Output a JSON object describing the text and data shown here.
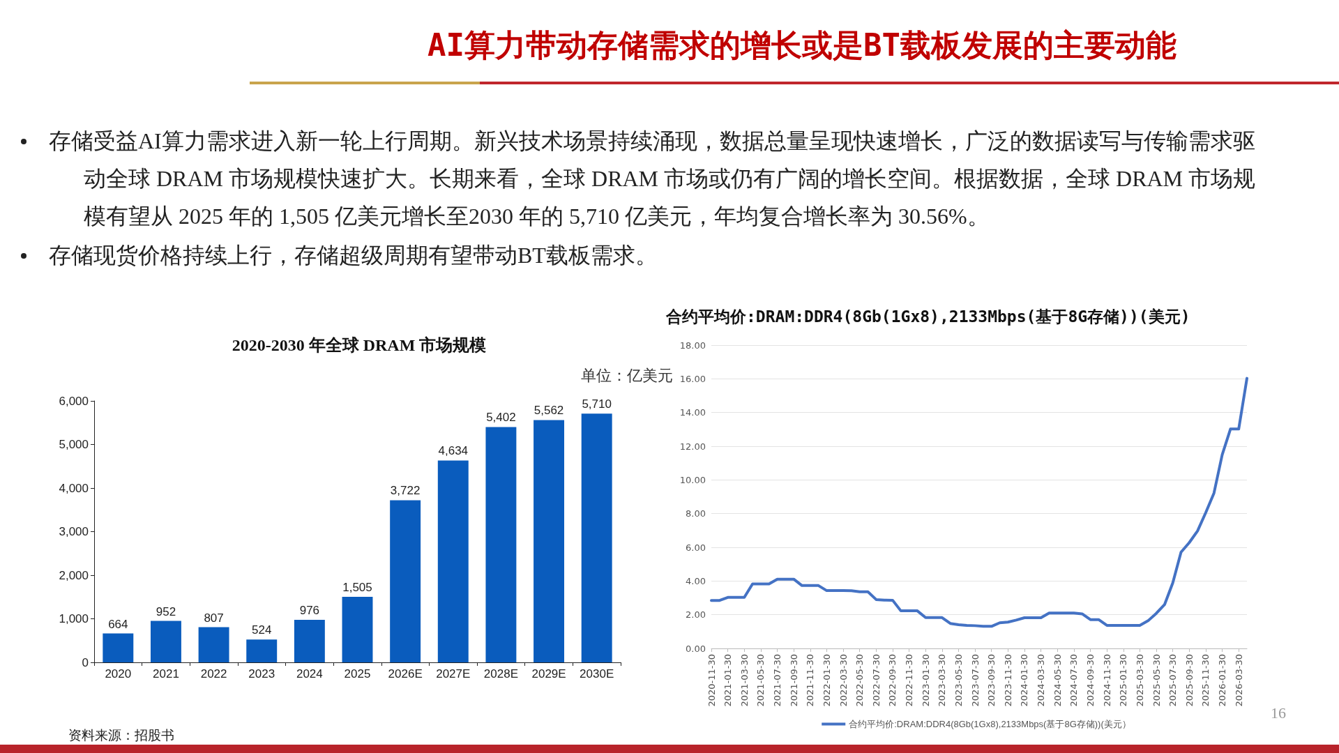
{
  "chart_data": [
    {
      "type": "other",
      "title": "AI算力带动存储需求的增长或是BT载板发展的主要动能",
      "annotations": [
        "存储受益AI算力需求进入新一轮上行周期。新兴技术场景持续涌现，数据总量呈现快速增长，广泛的数据读写与传输需求驱动全球 DRAM 市场规模快速扩大。长期来看，全球 DRAM 市场或仍有广阔的增长空间。根据数据，全球 DRAM 市场规模有望从 2025 年的 1,505 亿美元增长至2030 年的 5,710 亿美元，年均复合增长率为 30.56%。",
        "存储现货价格持续上行，存储超级周期有望带动BT载板需求。",
        "资料来源：招股书",
        "16"
      ]
    },
    {
      "type": "bar",
      "title": "2020-2030 年全球 DRAM 市场规模",
      "subtitle": "单位：亿美元",
      "categories": [
        "2020",
        "2021",
        "2022",
        "2023",
        "2024",
        "2025",
        "2026E",
        "2027E",
        "2028E",
        "2029E",
        "2030E"
      ],
      "values": [
        664,
        952,
        807,
        524,
        976,
        1505,
        3722,
        4634,
        5402,
        5562,
        5710
      ],
      "value_labels": [
        "664",
        "952",
        "807",
        "524",
        "976",
        "1,505",
        "3,722",
        "4,634",
        "5,402",
        "5,562",
        "5,710"
      ],
      "color": "#0a5cbd",
      "ylim": [
        0,
        6000
      ],
      "yticks": [
        0,
        {
          "value": 1000,
          "label": "1,000"
        },
        {
          "value": 2000,
          "label": "2,000"
        },
        {
          "value": 3000,
          "label": "3,000"
        },
        {
          "value": 4000,
          "label": "4,000"
        },
        {
          "value": 5000,
          "label": "5,000"
        },
        {
          "value": 6000,
          "label": "6,000"
        }
      ],
      "grid": false,
      "legend": false
    },
    {
      "type": "line",
      "title": "合约平均价:DRAM:DDR4(8Gb(1Gx8),2133Mbps(基于8G存储))(美元)",
      "categories": [
        "2020-11-30",
        null,
        "2021-01-30",
        null,
        "2021-03-30",
        null,
        "2021-05-30",
        null,
        "2021-07-30",
        null,
        "2021-09-30",
        null,
        "2021-11-30",
        null,
        "2022-01-30",
        null,
        "2022-03-30",
        null,
        "2022-05-30",
        null,
        "2022-07-30",
        null,
        "2022-09-30",
        null,
        "2022-11-30",
        null,
        "2023-01-30",
        null,
        "2023-03-30",
        null,
        "2023-05-30",
        null,
        "2023-07-30",
        null,
        "2023-09-30",
        null,
        "2023-11-30",
        null,
        "2024-01-30",
        null,
        "2024-03-30",
        null,
        "2024-05-30",
        null,
        "2024-07-30",
        null,
        "2024-09-30",
        null,
        "2024-11-30",
        null,
        "2025-01-30",
        null,
        "2025-03-30",
        null,
        "2025-05-30",
        null,
        "2025-07-30",
        null,
        "2025-09-30",
        null,
        "2025-11-30",
        null,
        "2026-01-30",
        null,
        "2026-03-30",
        null
      ],
      "series": [
        {
          "name": "合约平均价:DRAM:DDR4(8Gb(1Gx8),2133Mbps(基于8G存储))(美元）",
          "color": "#4472c4",
          "values": [
            2.85,
            2.85,
            3.03,
            3.03,
            3.03,
            3.83,
            3.83,
            3.83,
            4.11,
            4.11,
            4.11,
            3.73,
            3.73,
            3.73,
            3.43,
            3.43,
            3.43,
            3.42,
            3.36,
            3.36,
            2.9,
            2.87,
            2.86,
            2.23,
            2.23,
            2.23,
            1.83,
            1.83,
            1.83,
            1.48,
            1.41,
            1.37,
            1.35,
            1.31,
            1.31,
            1.52,
            1.56,
            1.68,
            1.82,
            1.82,
            1.82,
            2.1,
            2.1,
            2.1,
            2.1,
            2.05,
            1.71,
            1.71,
            1.37,
            1.37,
            1.37,
            1.37,
            1.37,
            1.64,
            2.08,
            2.6,
            3.89,
            5.71,
            6.28,
            6.97,
            8.06,
            9.22,
            11.5,
            13.02,
            13.02,
            16.03
          ]
        }
      ],
      "ylim": [
        0,
        18
      ],
      "yticks": [
        {
          "value": 0,
          "label": "0.00"
        },
        {
          "value": 2,
          "label": "2.00"
        },
        {
          "value": 4,
          "label": "4.00"
        },
        {
          "value": 6,
          "label": "6.00"
        },
        {
          "value": 8,
          "label": "8.00"
        },
        {
          "value": 10,
          "label": "10.00"
        },
        {
          "value": 12,
          "label": "12.00"
        },
        {
          "value": 14,
          "label": "14.00"
        },
        {
          "value": 16,
          "label": "16.00"
        },
        {
          "value": 18,
          "label": "18.00"
        }
      ],
      "grid": "y",
      "legend": "bottom",
      "marker": "none",
      "line_style": "solid"
    }
  ]
}
